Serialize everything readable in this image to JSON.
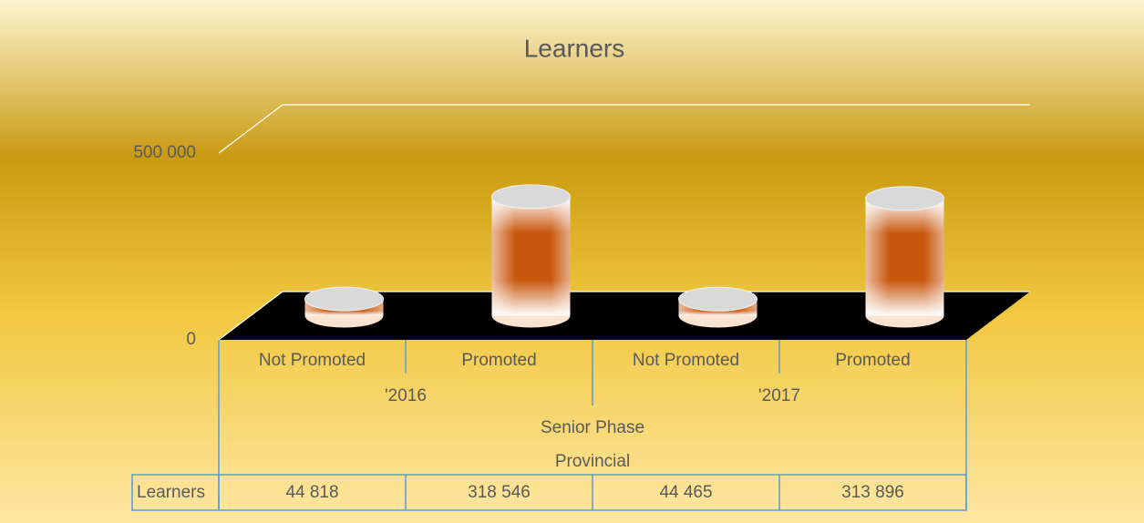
{
  "chart_data": {
    "type": "bar",
    "title": "Learners",
    "categories": [
      "Not Promoted",
      "Promoted",
      "Not Promoted",
      "Promoted"
    ],
    "groups": [
      "'2016",
      "'2017"
    ],
    "phase": "Senior Phase",
    "level": "Provincial",
    "series": [
      {
        "name": "Learners",
        "color": "#c9580f",
        "values": [
          44818,
          318546,
          44465,
          313896
        ],
        "value_labels": [
          "44 818",
          "318 546",
          "44 465",
          "313 896"
        ]
      }
    ],
    "ylim": [
      0,
      500000
    ],
    "yticks": [
      0,
      {
        "value": 500000,
        "label": "500 000"
      }
    ],
    "grid": true
  }
}
